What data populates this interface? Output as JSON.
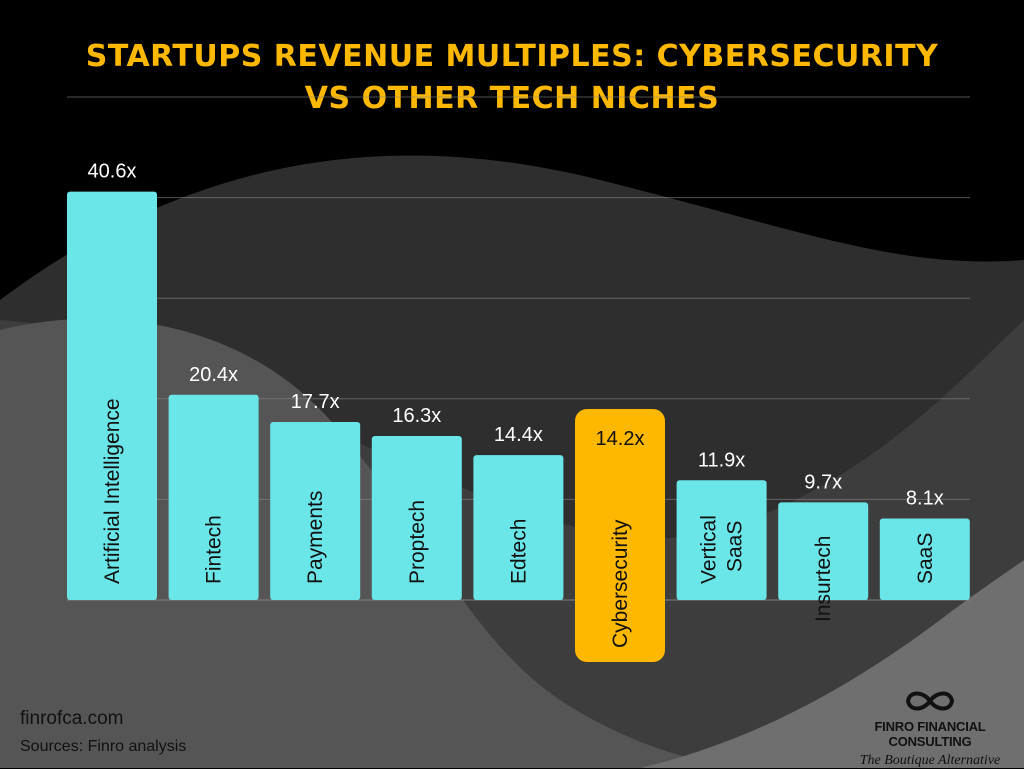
{
  "chart_data": {
    "type": "bar",
    "title": "STARTUPS REVENUE MULTIPLES: CYBERSECURITY VS OTHER TECH NICHES",
    "categories": [
      "Artificial Intelligence",
      "Fintech",
      "Payments",
      "Proptech",
      "Edtech",
      "Cybersecurity",
      "Vertical SaaS",
      "Insurtech",
      "SaaS"
    ],
    "values": [
      40.6,
      20.4,
      17.7,
      16.3,
      14.4,
      14.2,
      11.9,
      9.7,
      8.1
    ],
    "data_labels": [
      "40.6x",
      "20.4x",
      "17.7x",
      "16.3x",
      "14.4x",
      "14.2x",
      "11.9x",
      "9.7x",
      "8.1x"
    ],
    "highlight": "Cybersecurity",
    "ylim": [
      0,
      50
    ],
    "grid": true,
    "colors": {
      "bar": "#6BE6E8",
      "highlight": "#FFB800",
      "title": "#FFB800",
      "gridline": "#888888"
    }
  },
  "footer": {
    "website": "finrofca.com",
    "sources": "Sources: Finro analysis"
  },
  "logo": {
    "icon": "infinity-icon",
    "brand": "FINRO FINANCIAL CONSULTING",
    "tagline": "The Boutique Alternative"
  }
}
